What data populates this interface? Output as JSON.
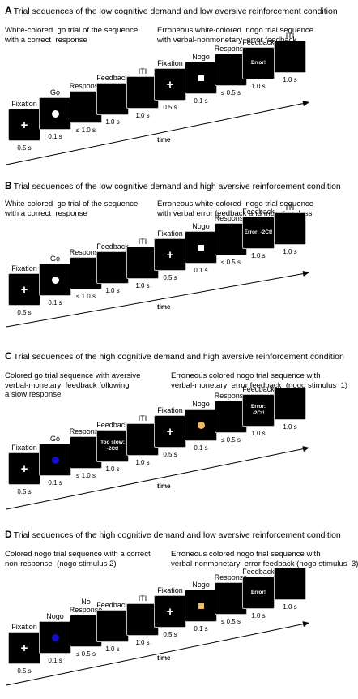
{
  "colors": {
    "white_stim": "#ffffff",
    "blue_stim": "#1010c8",
    "orange_stim": "#f0b860",
    "screen_bg": "#000000"
  },
  "panels": [
    {
      "letter": "A",
      "title": "Trial sequences  of the low cognitive demand and low aversive reinforcement condition",
      "left_caption": "White-colored  go trial of the sequence\nwith a correct  response",
      "right_caption": "Erroneous white-colored  nogo trial sequence\nwith verbal-nonmonetary  error feedback",
      "time_label": "time",
      "screens": [
        {
          "label": "Fixation",
          "duration": "0.5 s",
          "content": "plus"
        },
        {
          "label": "Go",
          "duration": "0.1 s",
          "content": "circle",
          "color": "white"
        },
        {
          "label": "Response",
          "duration": "≤ 1.0 s",
          "content": "none"
        },
        {
          "label": "Feedback",
          "duration": "1.0 s",
          "content": "none"
        },
        {
          "label": "ITI",
          "duration": "1.0 s",
          "content": "none"
        },
        {
          "label": "Fixation",
          "duration": "0.5 s",
          "content": "plus"
        },
        {
          "label": "Nogo",
          "duration": "0.1 s",
          "content": "square",
          "color": "white"
        },
        {
          "label": "Response",
          "duration": "≤ 0.5 s",
          "content": "none"
        },
        {
          "label": "Feedback",
          "duration": "1.0 s",
          "content": "text",
          "text": "Error!"
        },
        {
          "label": "ITI",
          "duration": "1.0 s",
          "content": "none"
        }
      ]
    },
    {
      "letter": "B",
      "title": "Trial sequences  of the low cognitive demand and high aversive reinforcement condition",
      "left_caption": "White-colored  go trial of the sequence\nwith a correct  response",
      "right_caption": "Erroneous white-colored  nogo trial sequence\nwith verbal error feedback and monetary loss",
      "time_label": "time",
      "screens": [
        {
          "label": "Fixation",
          "duration": "0.5 s",
          "content": "plus"
        },
        {
          "label": "Go",
          "duration": "0.1 s",
          "content": "circle",
          "color": "white"
        },
        {
          "label": "Response",
          "duration": "≤ 1.0 s",
          "content": "none"
        },
        {
          "label": "Feedback",
          "duration": "1.0 s",
          "content": "none"
        },
        {
          "label": "ITI",
          "duration": "1.0 s",
          "content": "none"
        },
        {
          "label": "Fixation",
          "duration": "0.5 s",
          "content": "plus"
        },
        {
          "label": "Nogo",
          "duration": "0.1 s",
          "content": "square",
          "color": "white"
        },
        {
          "label": "Response",
          "duration": "≤ 0.5 s",
          "content": "none"
        },
        {
          "label": "Feedback",
          "duration": "1.0 s",
          "content": "text",
          "text": "Error: -2Ct!"
        },
        {
          "label": "ITI",
          "duration": "1.0 s",
          "content": "none"
        }
      ]
    },
    {
      "letter": "C",
      "title": "Trial sequences of the high cognitive demand and high aversive reinforcement condition",
      "left_caption": "Colored go trial sequence with aversive\nverbal-monetary  feedback following\na slow response",
      "right_caption": "Erroneous colored nogo trial sequence with\nverbal-monetary  error feedback  (nogo stimulus  1)",
      "time_label": "time",
      "screens": [
        {
          "label": "Fixation",
          "duration": "0.5 s",
          "content": "plus"
        },
        {
          "label": "Go",
          "duration": "0.1 s",
          "content": "circle",
          "color": "blue"
        },
        {
          "label": "Response",
          "duration": "≤ 1.0 s",
          "content": "none"
        },
        {
          "label": "Feedback",
          "duration": "1.0 s",
          "content": "text",
          "text": "Too slow:\n-2Ct!"
        },
        {
          "label": "ITI",
          "duration": "1.0 s",
          "content": "none"
        },
        {
          "label": "Fixation",
          "duration": "0.5 s",
          "content": "plus"
        },
        {
          "label": "Nogo",
          "duration": "0.1 s",
          "content": "circle",
          "color": "orange"
        },
        {
          "label": "Response",
          "duration": "≤ 0.5 s",
          "content": "none"
        },
        {
          "label": "Feedback",
          "duration": "1.0 s",
          "content": "text",
          "text": "Error:\n-2Ct!"
        },
        {
          "label": "",
          "duration": "1.0 s",
          "content": "none"
        }
      ]
    },
    {
      "letter": "D",
      "title": "Trial sequences of the high cognitive demand and low aversive reinforcement condition",
      "left_caption": "Colored nogo trial sequence with a correct\nnon-response  (nogo stimulus 2)",
      "right_caption": "Erroneous colored nogo trial sequence with\nverbal-nonmonetary  error feedback (nogo stimulus  3)",
      "time_label": "time",
      "screens": [
        {
          "label": "Fixation",
          "duration": "0.5 s",
          "content": "plus"
        },
        {
          "label": "Nogo",
          "duration": "0.1 s",
          "content": "circle",
          "color": "blue"
        },
        {
          "label": "No\nResponse",
          "duration": "≤ 0.5 s",
          "content": "none"
        },
        {
          "label": "Feedback",
          "duration": "1.0 s",
          "content": "none"
        },
        {
          "label": "ITI",
          "duration": "1.0 s",
          "content": "none"
        },
        {
          "label": "Fixation",
          "duration": "0.5 s",
          "content": "plus"
        },
        {
          "label": "Nogo",
          "duration": "0.1 s",
          "content": "square",
          "color": "orange"
        },
        {
          "label": "Response",
          "duration": "≤ 0.5 s",
          "content": "none"
        },
        {
          "label": "Feedback",
          "duration": "1.0 s",
          "content": "text",
          "text": "Error!"
        },
        {
          "label": "",
          "duration": "1.0 s",
          "content": "none"
        }
      ]
    }
  ]
}
